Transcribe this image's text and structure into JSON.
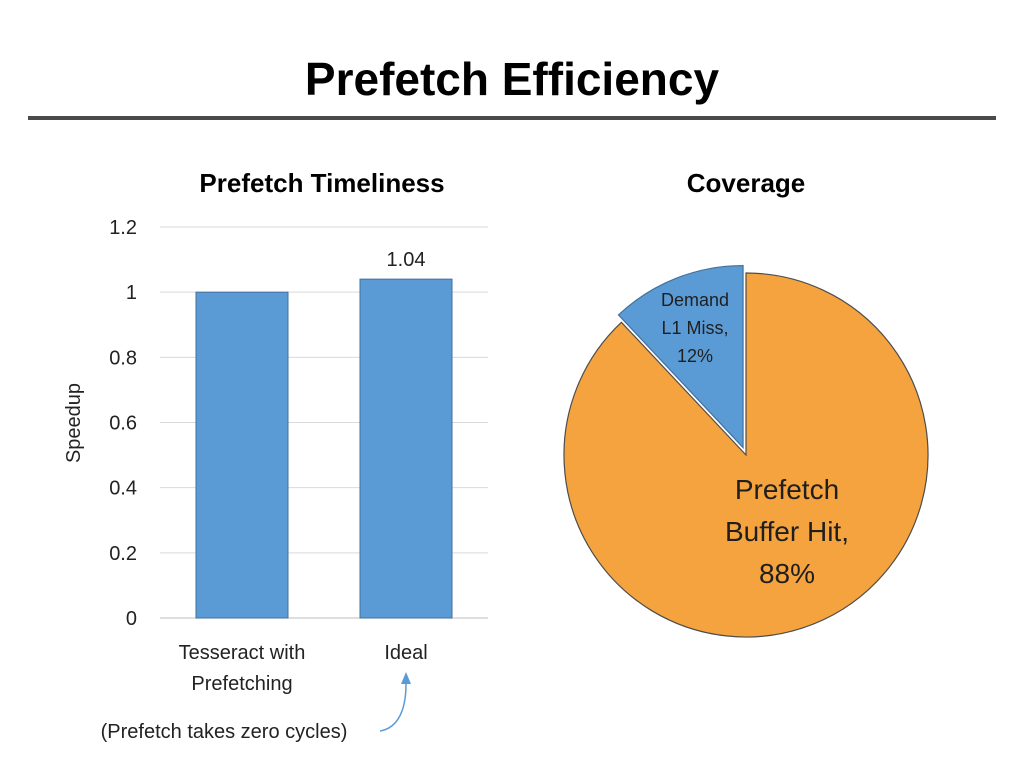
{
  "slide": {
    "title": "Prefetch Efficiency"
  },
  "chart_data": [
    {
      "type": "bar",
      "title": "Prefetch Timeliness",
      "xlabel": "",
      "ylabel": "Speedup",
      "ylim": [
        0,
        1.2
      ],
      "yticks": [
        "0",
        "0.2",
        "0.4",
        "0.6",
        "0.8",
        "1",
        "1.2"
      ],
      "grid": true,
      "color": "#5B9BD5",
      "categories": [
        [
          "Tesseract with",
          "Prefetching"
        ],
        [
          "Ideal"
        ]
      ],
      "values": [
        1.0,
        1.04
      ],
      "data_labels": [
        "",
        "1.04"
      ]
    },
    {
      "type": "pie",
      "title": "Coverage",
      "slices": [
        {
          "name": "Demand L1 Miss",
          "value": 12,
          "label_lines": [
            "Demand",
            "L1 Miss,",
            "12%"
          ],
          "color": "#5B9BD5",
          "exploded": true
        },
        {
          "name": "Prefetch Buffer Hit",
          "value": 88,
          "label_lines": [
            "Prefetch",
            "Buffer Hit,",
            "88%"
          ],
          "color": "#F5A33F",
          "exploded": false
        }
      ]
    }
  ],
  "annotation": {
    "text": "(Prefetch takes zero cycles)"
  }
}
